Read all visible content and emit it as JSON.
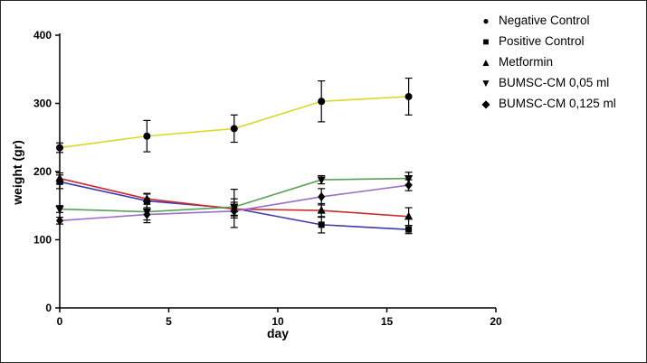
{
  "chart_data": {
    "type": "line",
    "title": "",
    "xlabel": "day",
    "ylabel": "weight (gr)",
    "xlim": [
      0,
      20
    ],
    "ylim": [
      0,
      400
    ],
    "xticks": [
      0,
      5,
      10,
      15,
      20
    ],
    "yticks": [
      0,
      100,
      200,
      300,
      400
    ],
    "x": [
      0,
      4,
      8,
      12,
      16
    ],
    "grid": false,
    "legend_position": "top-right",
    "marker_color": "#000000",
    "series": [
      {
        "name": "Negative Control",
        "color": "#d9d926",
        "marker": "circle",
        "glyph": "●",
        "values": [
          235,
          252,
          263,
          303,
          310
        ],
        "errors": [
          7,
          23,
          20,
          30,
          27
        ]
      },
      {
        "name": "Positive Control",
        "color": "#3b3bad",
        "marker": "square",
        "glyph": "■",
        "values": [
          185,
          157,
          146,
          122,
          115
        ],
        "errors": [
          10,
          10,
          28,
          12,
          6
        ]
      },
      {
        "name": "Metformin",
        "color": "#cc2e2e",
        "marker": "triangle-up",
        "glyph": "▲",
        "values": [
          190,
          160,
          145,
          143,
          134
        ],
        "errors": [
          8,
          8,
          10,
          10,
          13
        ]
      },
      {
        "name": "BUMSC-CM 0,05 ml",
        "color": "#58a058",
        "marker": "triangle-down",
        "glyph": "▼",
        "values": [
          145,
          141,
          148,
          188,
          190
        ],
        "errors": [
          5,
          16,
          12,
          6,
          9
        ]
      },
      {
        "name": "BUMSC-CM 0,125 ml",
        "color": "#9a6fc4",
        "marker": "diamond",
        "glyph": "◆",
        "values": [
          128,
          137,
          142,
          163,
          180
        ],
        "errors": [
          5,
          8,
          10,
          12,
          8
        ]
      }
    ]
  }
}
